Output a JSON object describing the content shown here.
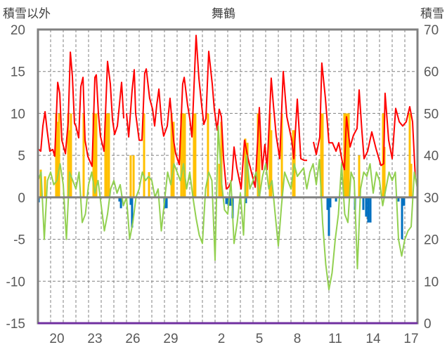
{
  "chart_data": {
    "type": "line",
    "title": "舞鶴",
    "ylabel_left": "積雪以外",
    "ylabel_right": "積雪",
    "ylim_left": [
      -15,
      20
    ],
    "ylim_right": [
      0,
      70
    ],
    "yticks_left": [
      "20",
      "15",
      "10",
      "5",
      "0",
      "-5",
      "-10",
      "-15"
    ],
    "yticks_right": [
      "70",
      "60",
      "50",
      "40",
      "30",
      "20",
      "10",
      "0"
    ],
    "x_unit": "days from first day shown (Dec 19)",
    "xlim": [
      0,
      30
    ],
    "xtick_labels": [
      {
        "day": 1,
        "label": "20"
      },
      {
        "day": 4,
        "label": "23"
      },
      {
        "day": 7,
        "label": "26"
      },
      {
        "day": 10,
        "label": "29"
      },
      {
        "day": 14,
        "label": "2"
      },
      {
        "day": 17,
        "label": "5"
      },
      {
        "day": 20,
        "label": "8"
      },
      {
        "day": 23,
        "label": "11"
      },
      {
        "day": 26,
        "label": "14"
      },
      {
        "day": 29,
        "label": "17"
      }
    ],
    "grid": true,
    "colors": {
      "red": "#FF0000",
      "green": "#92D050",
      "orange": "#FFC000",
      "blue": "#0070C0",
      "purple": "#7030A0",
      "axis": "#808080"
    },
    "series": [
      {
        "name": "red-line",
        "axis": "left",
        "type": "line",
        "color": "#FF0000",
        "points": [
          [
            0,
            5.8
          ],
          [
            0.22,
            5.5
          ],
          [
            0.39,
            8.5
          ],
          [
            0.56,
            10.2
          ],
          [
            0.72,
            8
          ],
          [
            0.94,
            5.5
          ],
          [
            1.17,
            5.7
          ],
          [
            1.33,
            4.9
          ],
          [
            1.56,
            13.7
          ],
          [
            1.72,
            12.4
          ],
          [
            1.89,
            6.8
          ],
          [
            2.17,
            5.2
          ],
          [
            2.39,
            9
          ],
          [
            2.56,
            17.3
          ],
          [
            2.72,
            14.4
          ],
          [
            2.89,
            8.8
          ],
          [
            3.0,
            8.5
          ],
          [
            3.22,
            7.1
          ],
          [
            3.39,
            13.2
          ],
          [
            3.56,
            14.3
          ],
          [
            3.72,
            6.8
          ],
          [
            3.94,
            4.9
          ],
          [
            4.28,
            3.7
          ],
          [
            4.5,
            14.3
          ],
          [
            4.61,
            14.6
          ],
          [
            4.78,
            10
          ],
          [
            4.94,
            7.3
          ],
          [
            5.22,
            5.5
          ],
          [
            5.5,
            16.2
          ],
          [
            5.72,
            13.5
          ],
          [
            5.89,
            9.3
          ],
          [
            6.06,
            7.5
          ],
          [
            6.28,
            8.5
          ],
          [
            6.61,
            13.7
          ],
          [
            6.78,
            9.4
          ],
          null,
          [
            7.0,
            10
          ],
          [
            7.17,
            7.2
          ],
          [
            7.44,
            12.7
          ],
          [
            7.61,
            15.2
          ],
          [
            7.72,
            10
          ],
          [
            8.0,
            6.8
          ],
          [
            8.22,
            6.8
          ],
          [
            8.44,
            14.8
          ],
          [
            8.56,
            15.3
          ],
          [
            8.83,
            11.8
          ],
          [
            9.06,
            10.5
          ],
          [
            9.22,
            8.5
          ],
          [
            9.39,
            11
          ],
          [
            9.56,
            12.9
          ],
          [
            9.78,
            8.8
          ],
          [
            9.94,
            7.3
          ],
          [
            10.22,
            8.5
          ],
          [
            10.44,
            11.8
          ],
          [
            10.72,
            6.8
          ],
          [
            10.89,
            5.2
          ],
          [
            11.17,
            3.9
          ],
          [
            11.44,
            13.5
          ],
          [
            11.56,
            14.3
          ],
          [
            11.83,
            11
          ],
          [
            12.0,
            9.4
          ],
          [
            12.17,
            7.2
          ],
          [
            12.5,
            19.3
          ],
          [
            12.72,
            14.2
          ],
          [
            12.94,
            11
          ],
          [
            13.11,
            8.7
          ],
          [
            13.28,
            9.4
          ],
          [
            13.5,
            17.4
          ],
          [
            13.78,
            13.5
          ],
          [
            13.94,
            10.5
          ],
          [
            14.17,
            8
          ],
          [
            14.33,
            10.5
          ],
          [
            14.5,
            9.6
          ],
          [
            14.67,
            4.6
          ],
          [
            14.89,
            1
          ],
          [
            15.06,
            1.2
          ],
          [
            15.33,
            2.1
          ],
          [
            15.5,
            6
          ],
          [
            15.72,
            3.5
          ],
          [
            16.06,
            1
          ],
          [
            16.33,
            6.8
          ],
          [
            16.61,
            4.6
          ],
          [
            16.89,
            2.9
          ],
          [
            17.17,
            1.2
          ],
          [
            17.5,
            10.7
          ],
          [
            17.72,
            3.3
          ],
          [
            17.94,
            6.3
          ],
          [
            18.11,
            3.3
          ],
          [
            18.44,
            14.2
          ],
          [
            18.61,
            11
          ],
          [
            18.83,
            7.4
          ],
          [
            19.11,
            4.6
          ],
          [
            19.39,
            15
          ],
          [
            19.67,
            9.6
          ],
          [
            20.06,
            6.8
          ],
          [
            20.22,
            4.6
          ],
          [
            20.5,
            11.7
          ],
          [
            20.78,
            4.6
          ],
          [
            21.06,
            4.4
          ],
          [
            21.28,
            4.4
          ],
          null,
          [
            21.78,
            6.6
          ],
          [
            22.0,
            5.1
          ],
          [
            22.28,
            7.2
          ],
          [
            22.44,
            16
          ],
          [
            22.72,
            11.8
          ],
          [
            23.0,
            6.5
          ],
          [
            23.28,
            6.5
          ],
          [
            23.56,
            5.5
          ],
          [
            23.78,
            6.5
          ],
          [
            24.06,
            4.2
          ],
          [
            24.22,
            3.3
          ],
          [
            24.39,
            9.6
          ],
          [
            24.67,
            6
          ],
          [
            24.94,
            7.4
          ],
          [
            25.22,
            8.2
          ],
          [
            25.39,
            12.8
          ],
          [
            25.61,
            7.8
          ],
          [
            25.78,
            4.6
          ],
          [
            26.06,
            5.5
          ],
          [
            26.39,
            7.8
          ],
          [
            26.72,
            5.8
          ],
          [
            27.11,
            3.8
          ],
          [
            27.33,
            4
          ],
          [
            27.44,
            12.4
          ],
          [
            27.72,
            6.8
          ],
          [
            28.0,
            4.6
          ],
          [
            28.28,
            10.6
          ],
          [
            28.56,
            9
          ],
          [
            28.83,
            8.5
          ],
          [
            29.11,
            9
          ],
          [
            29.39,
            10.8
          ],
          [
            29.61,
            9
          ],
          [
            29.83,
            2.4
          ]
        ]
      },
      {
        "name": "green-line",
        "axis": "left",
        "type": "line",
        "color": "#92D050",
        "step": 0.25,
        "values": [
          2,
          3,
          -5,
          2,
          3,
          1.5,
          2,
          4,
          1.5,
          -5,
          3,
          2,
          1,
          3,
          -3,
          -2,
          1.5,
          3,
          0.5,
          2,
          -1,
          -4,
          -2,
          1,
          2,
          0.5,
          1.5,
          -1,
          0,
          -5,
          -3,
          0,
          1,
          3,
          2,
          2.5,
          2,
          0,
          1,
          -4,
          -0.5,
          3,
          1.5,
          4,
          3,
          2,
          4,
          1,
          3,
          0,
          -2.5,
          -4.5,
          -5.5,
          1,
          3,
          2,
          -7.5,
          8.5,
          2,
          -1.5,
          -2,
          2,
          -5.5,
          -3,
          0.5,
          -4.5,
          5,
          1,
          2,
          3,
          0,
          2.5,
          4,
          1,
          2,
          -2,
          -5.8,
          -1,
          3,
          2,
          1,
          4,
          2.5,
          3,
          3.5,
          1,
          3,
          4,
          1.5,
          4.5,
          -3,
          -8,
          -11,
          -9,
          -5,
          -2,
          4,
          -2,
          -3,
          3,
          2,
          -8.5,
          1,
          3,
          2.5,
          4,
          0.5,
          3,
          2,
          -1,
          1,
          3,
          2,
          3,
          -5,
          -7,
          -5,
          -4,
          -3.5,
          3,
          1
        ]
      },
      {
        "name": "orange-bars",
        "axis": "left",
        "type": "bar",
        "color": "#FFC000",
        "points": [
          [
            0.22,
            3.3
          ],
          [
            0.56,
            2.5
          ],
          [
            1.44,
            10
          ],
          [
            1.56,
            9
          ],
          [
            1.67,
            10
          ],
          [
            2.39,
            10
          ],
          [
            2.5,
            8
          ],
          [
            2.61,
            10
          ],
          [
            3.61,
            10
          ],
          [
            4.39,
            10
          ],
          [
            4.5,
            10
          ],
          [
            4.61,
            10
          ],
          [
            5.33,
            9
          ],
          [
            5.44,
            10
          ],
          [
            5.61,
            10
          ],
          [
            7.33,
            5
          ],
          [
            7.56,
            5
          ],
          [
            8.39,
            10
          ],
          [
            8.78,
            3
          ],
          [
            10.56,
            10
          ],
          [
            10.72,
            9
          ],
          [
            11.33,
            10
          ],
          [
            11.5,
            10
          ],
          [
            11.61,
            10
          ],
          [
            12.33,
            10
          ],
          [
            12.44,
            10
          ],
          [
            13.44,
            10
          ],
          [
            14.33,
            4
          ],
          [
            14.5,
            9
          ],
          [
            16.39,
            7
          ],
          [
            16.56,
            6.5
          ],
          [
            17.39,
            10
          ],
          [
            17.5,
            10
          ],
          [
            18.33,
            10
          ],
          [
            18.44,
            8
          ],
          [
            19.28,
            10
          ],
          [
            20.17,
            8
          ],
          [
            20.28,
            8
          ],
          [
            22.39,
            10
          ],
          [
            22.5,
            10
          ],
          [
            24.22,
            10
          ],
          [
            24.33,
            10
          ],
          [
            24.44,
            10
          ],
          [
            24.56,
            10
          ],
          [
            25.39,
            5
          ],
          [
            27.28,
            10
          ],
          [
            27.39,
            6
          ],
          [
            29.39,
            10
          ],
          [
            29.5,
            4
          ]
        ]
      },
      {
        "name": "blue-bars",
        "axis": "left",
        "type": "bar",
        "color": "#0070C0",
        "points": [
          [
            0.06,
            -0.6
          ],
          [
            6.44,
            -0.5
          ],
          [
            6.56,
            -1.3
          ],
          [
            7.33,
            -0.9
          ],
          [
            7.44,
            -3.6
          ],
          [
            10.0,
            -1.3
          ],
          [
            10.17,
            -1.3
          ],
          [
            14.89,
            -0.8
          ],
          [
            15.06,
            -1.0
          ],
          [
            15.22,
            -1.0
          ],
          [
            15.39,
            -2.5
          ],
          [
            16.44,
            -0.7
          ],
          [
            22.89,
            -1.5
          ],
          [
            23.0,
            -4.6
          ],
          [
            23.11,
            -1.2
          ],
          [
            23.56,
            -0.5
          ],
          [
            25.06,
            -1.5
          ],
          [
            25.72,
            -1.5
          ],
          [
            25.94,
            -2.3
          ],
          [
            26.11,
            -3.0
          ],
          [
            26.28,
            -3.0
          ],
          [
            28.5,
            -0.5
          ],
          [
            28.78,
            -5.0
          ],
          [
            28.94,
            -1.0
          ]
        ]
      },
      {
        "name": "snow-depth",
        "axis": "right",
        "type": "line",
        "color": "#7030A0",
        "points": [
          [
            0,
            0
          ],
          [
            30,
            0
          ]
        ]
      }
    ]
  }
}
